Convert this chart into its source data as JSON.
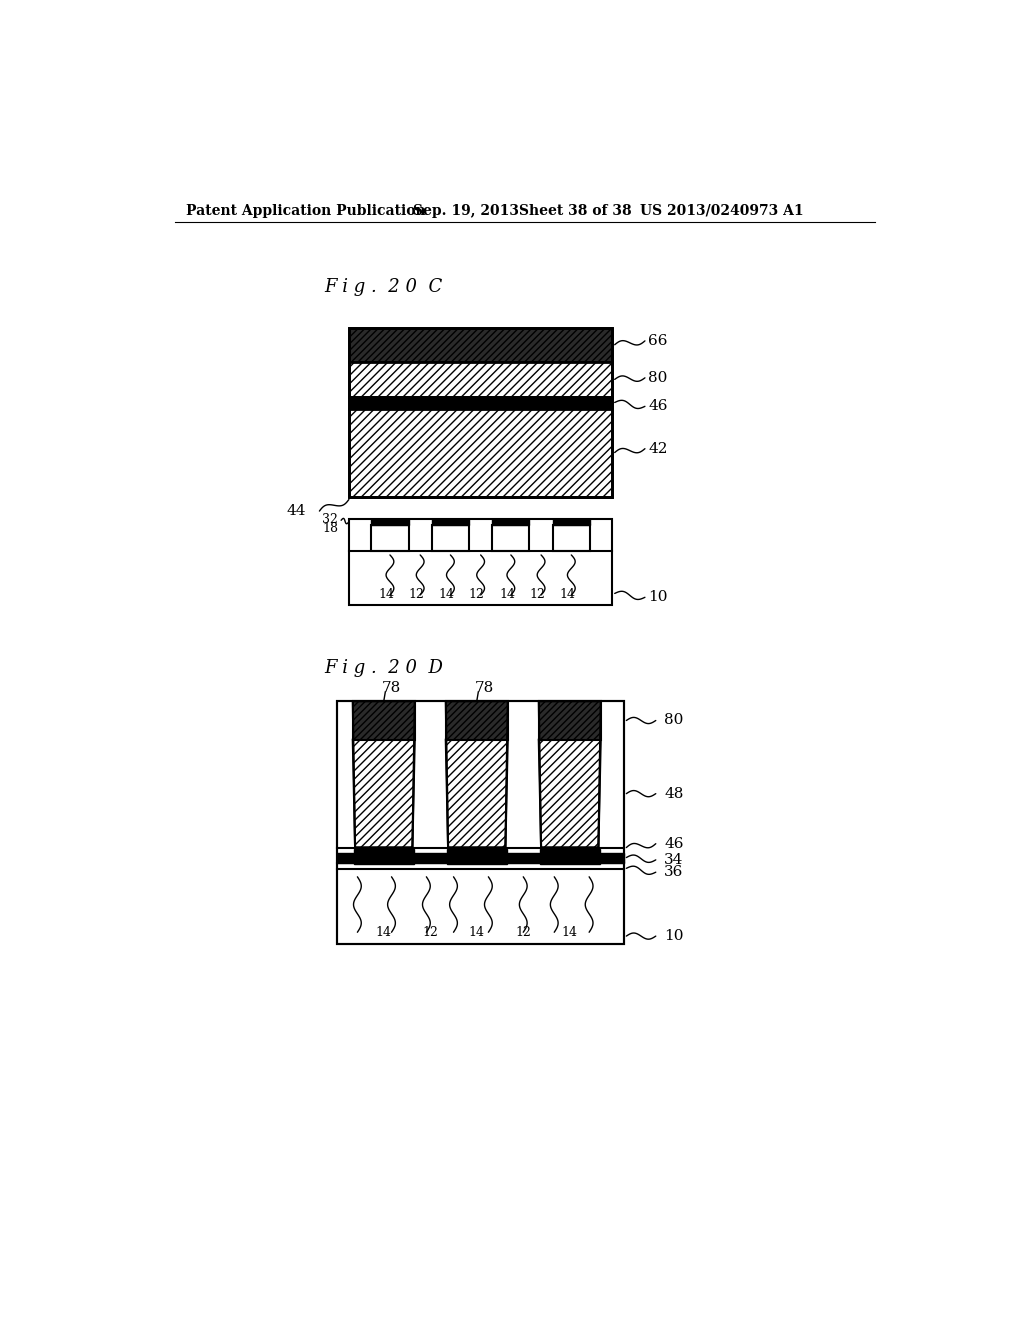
{
  "bg_color": "#ffffff",
  "header_text": "Patent Application Publication",
  "header_date": "Sep. 19, 2013",
  "header_sheet": "Sheet 38 of 38",
  "header_patent": "US 2013/0240973 A1",
  "fig_label_C": "F i g .  2 0  C",
  "fig_label_D": "F i g .  2 0  D"
}
